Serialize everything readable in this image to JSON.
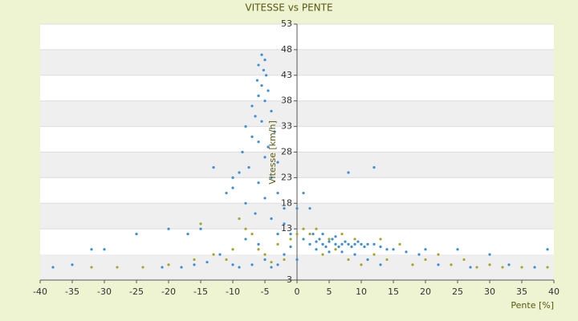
{
  "chart_data": {
    "type": "scatter",
    "title": "VITESSE vs PENTE",
    "x_label": "Pente [%]",
    "y_label": "Vitesse [km/h]",
    "xlim": [
      -40,
      40
    ],
    "xticks": [
      -40,
      -35,
      -30,
      -25,
      -20,
      -15,
      -10,
      -5,
      0,
      5,
      10,
      15,
      20,
      25,
      30,
      35,
      40
    ],
    "ylim": [
      3,
      53
    ],
    "yticks": [
      3,
      13,
      18,
      23,
      28,
      33,
      38,
      43,
      48,
      53
    ],
    "grid": true,
    "series": [
      {
        "color": "#3a8fd6",
        "x": [
          -5.5,
          -5,
          -6,
          -5.2,
          -4.8,
          -6.2,
          -5.5,
          -4.5,
          -6,
          -5,
          -7,
          -4,
          -6.5,
          -5.5,
          -8,
          -3.5,
          -7,
          -6,
          -4.5,
          -8.5,
          -5,
          -3,
          -7.5,
          -9,
          -4,
          -6,
          -10,
          -3,
          -5,
          -8,
          -2,
          -6.5,
          -4,
          -13,
          -10,
          -11,
          8,
          12,
          1,
          2,
          0,
          -15,
          -17,
          -20,
          -25,
          -30,
          -32,
          -35,
          -38,
          1,
          2,
          3,
          3.5,
          4,
          4.5,
          5,
          5.5,
          6,
          6.5,
          7,
          7.5,
          8,
          8.5,
          9,
          9.5,
          10,
          10.5,
          11,
          12,
          13,
          14,
          2.5,
          4,
          6,
          7,
          9,
          5,
          3,
          15,
          17,
          19,
          20,
          25,
          30,
          39,
          -12,
          -14,
          -16,
          -18,
          -21,
          -10,
          -9,
          -7,
          -5,
          -3,
          -2,
          -1,
          0,
          -4,
          -8,
          -6,
          -3,
          -2,
          -1,
          22,
          27,
          33,
          37,
          11,
          13
        ],
        "values": [
          47,
          46,
          45,
          44,
          43,
          42,
          41,
          40,
          39,
          38,
          37,
          36,
          35,
          34,
          33,
          32,
          31,
          30,
          29,
          28,
          27,
          26,
          25,
          24,
          23,
          22,
          21,
          20,
          19,
          18,
          17,
          16,
          15,
          25,
          23,
          20,
          24,
          25,
          20,
          17,
          17,
          13,
          12,
          13,
          12,
          9,
          9,
          6,
          5.5,
          11,
          10,
          10.5,
          11,
          10,
          9.5,
          10.5,
          11,
          10,
          9.5,
          10,
          10.5,
          10,
          9.5,
          10,
          10.5,
          10,
          9.5,
          10,
          10,
          9.5,
          9,
          12,
          12,
          11.5,
          8.5,
          8,
          8.5,
          9,
          9,
          8.5,
          8,
          9,
          9,
          8,
          9,
          8,
          6.5,
          6,
          5.5,
          5.5,
          6,
          5.5,
          6,
          7,
          6,
          8,
          9.5,
          7,
          5.5,
          11,
          10,
          12,
          14,
          12,
          6,
          5.5,
          6,
          5.5,
          7,
          6
        ]
      },
      {
        "color": "#a5a52a",
        "x": [
          -32,
          -28,
          -24,
          -20,
          -16,
          -13,
          -10,
          -9,
          -8,
          -7,
          -6,
          -5,
          -4,
          -3,
          -2,
          -1,
          0,
          1,
          2,
          3,
          5,
          6,
          8,
          10,
          12,
          14,
          16,
          18,
          20,
          22,
          24,
          26,
          28,
          30,
          32,
          35,
          39,
          -15,
          -11,
          4,
          9,
          13,
          7
        ],
        "values": [
          5.5,
          5.5,
          5.5,
          6,
          7,
          8,
          9,
          15,
          13,
          12,
          9,
          8,
          6.5,
          10,
          7,
          11,
          12,
          13,
          12,
          13,
          11,
          9,
          7,
          6,
          8,
          7,
          10,
          6,
          7,
          8,
          6,
          7,
          5.5,
          6,
          5.5,
          5.5,
          5.5,
          14,
          7,
          8,
          11,
          11,
          12
        ]
      }
    ]
  }
}
